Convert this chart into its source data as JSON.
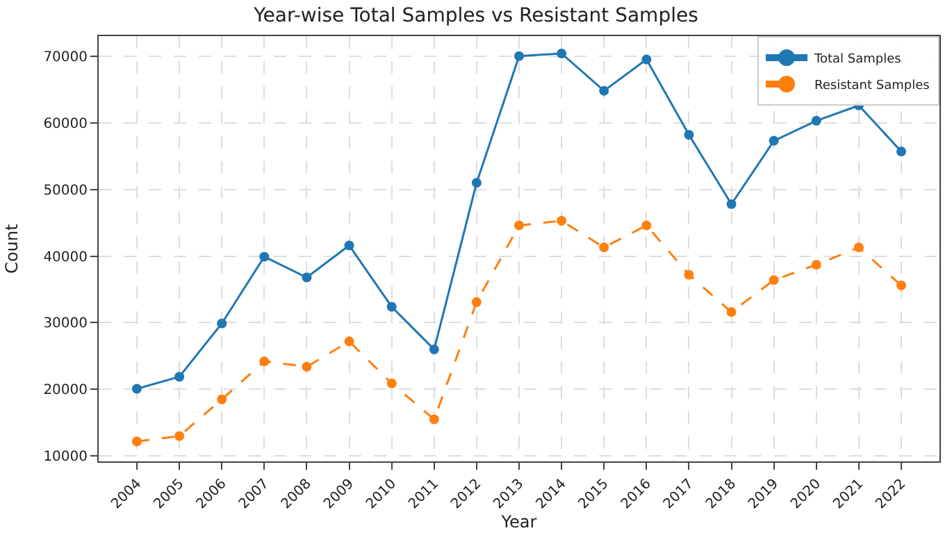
{
  "chart_data": {
    "type": "line",
    "title": "Year-wise Total Samples vs Resistant Samples",
    "xlabel": "Year",
    "ylabel": "Count",
    "categories": [
      "2004",
      "2005",
      "2006",
      "2007",
      "2008",
      "2009",
      "2010",
      "2011",
      "2012",
      "2013",
      "2014",
      "2015",
      "2016",
      "2017",
      "2018",
      "2019",
      "2020",
      "2021",
      "2022"
    ],
    "series": [
      {
        "name": "Total Samples",
        "color": "#1f77b4",
        "line_style": "solid",
        "values": [
          20100,
          21900,
          29900,
          39900,
          36800,
          41600,
          32400,
          26000,
          51000,
          70000,
          70400,
          64800,
          69500,
          58200,
          47800,
          57300,
          60300,
          62600,
          55700
        ]
      },
      {
        "name": "Resistant Samples",
        "color": "#ff7f0e",
        "line_style": "dashed",
        "values": [
          12200,
          13000,
          18500,
          24200,
          23400,
          27200,
          20900,
          15500,
          33100,
          44600,
          45300,
          41300,
          44600,
          37200,
          31600,
          36400,
          38700,
          41300,
          35600
        ]
      }
    ],
    "ylim": [
      9200,
      73000
    ],
    "yticks": [
      10000,
      20000,
      30000,
      40000,
      50000,
      60000,
      70000
    ],
    "grid": true,
    "legend": "top right",
    "marker": "circle"
  }
}
